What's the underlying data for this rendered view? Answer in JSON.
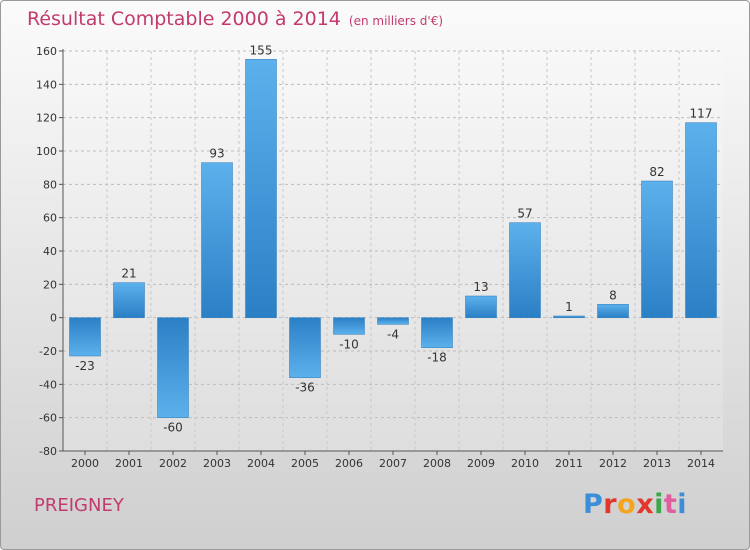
{
  "header": {
    "title": "Résultat Comptable 2000 à 2014",
    "subtitle": "(en milliers d'€)"
  },
  "footer": {
    "commune": "PREIGNEY",
    "logo_letters": [
      "P",
      "r",
      "o",
      "x",
      "i",
      "t",
      "i"
    ],
    "logo_colors": [
      "#3a8fd8",
      "#e3372d",
      "#f2a51d",
      "#e3372d",
      "#3aa84a",
      "#e05d9e",
      "#3a8fd8"
    ]
  },
  "colors": {
    "bar_light": "#5cb1ec",
    "bar_dark": "#2b7fc5",
    "text": "#333333",
    "brand": "#c33a6e"
  },
  "chart_data": {
    "type": "bar",
    "title": "Résultat Comptable 2000 à 2014",
    "ylabel": "en milliers d'€",
    "categories": [
      "2000",
      "2001",
      "2002",
      "2003",
      "2004",
      "2005",
      "2006",
      "2007",
      "2008",
      "2009",
      "2010",
      "2011",
      "2012",
      "2013",
      "2014"
    ],
    "values": [
      -23,
      21,
      -60,
      93,
      155,
      -36,
      -10,
      -4,
      -18,
      13,
      57,
      1,
      8,
      82,
      117
    ],
    "ylim": [
      -80,
      160
    ],
    "yticks": [
      -80,
      -60,
      -40,
      -20,
      0,
      20,
      40,
      60,
      80,
      100,
      120,
      140,
      160
    ],
    "grid": "horizontal-dashed"
  }
}
